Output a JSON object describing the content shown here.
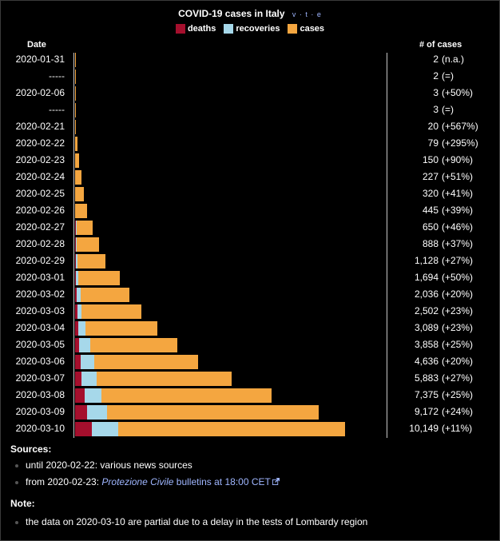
{
  "title": "COVID-19 cases in Italy",
  "vte": "v · t · e",
  "legend": [
    {
      "label": "deaths",
      "color": "#a50f2d"
    },
    {
      "label": "recoveries",
      "color": "#a6d8ea"
    },
    {
      "label": "cases",
      "color": "#f4a640"
    }
  ],
  "headers": {
    "date": "Date",
    "cases": "# of cases"
  },
  "chart_data": {
    "type": "bar",
    "orientation": "horizontal",
    "stacked": true,
    "title": "COVID-19 cases in Italy",
    "series_names": [
      "deaths",
      "recoveries",
      "cases"
    ],
    "rows": [
      {
        "date": "2020-01-31",
        "deaths": 0,
        "recoveries": 0,
        "cases": 2,
        "cases_label": "2",
        "change": "(n.a.)"
      },
      {
        "date": "-----",
        "deaths": 0,
        "recoveries": 0,
        "cases": 2,
        "cases_label": "2",
        "change": "(=)"
      },
      {
        "date": "2020-02-06",
        "deaths": 0,
        "recoveries": 0,
        "cases": 3,
        "cases_label": "3",
        "change": "(+50%)"
      },
      {
        "date": "-----",
        "deaths": 0,
        "recoveries": 0,
        "cases": 3,
        "cases_label": "3",
        "change": "(=)"
      },
      {
        "date": "2020-02-21",
        "deaths": 1,
        "recoveries": 0,
        "cases": 20,
        "cases_label": "20",
        "change": "(+567%)"
      },
      {
        "date": "2020-02-22",
        "deaths": 2,
        "recoveries": 0,
        "cases": 79,
        "cases_label": "79",
        "change": "(+295%)"
      },
      {
        "date": "2020-02-23",
        "deaths": 3,
        "recoveries": 0,
        "cases": 150,
        "cases_label": "150",
        "change": "(+90%)"
      },
      {
        "date": "2020-02-24",
        "deaths": 7,
        "recoveries": 1,
        "cases": 227,
        "cases_label": "227",
        "change": "(+51%)"
      },
      {
        "date": "2020-02-25",
        "deaths": 10,
        "recoveries": 1,
        "cases": 320,
        "cases_label": "320",
        "change": "(+41%)"
      },
      {
        "date": "2020-02-26",
        "deaths": 12,
        "recoveries": 3,
        "cases": 445,
        "cases_label": "445",
        "change": "(+39%)"
      },
      {
        "date": "2020-02-27",
        "deaths": 17,
        "recoveries": 45,
        "cases": 650,
        "cases_label": "650",
        "change": "(+46%)"
      },
      {
        "date": "2020-02-28",
        "deaths": 21,
        "recoveries": 46,
        "cases": 888,
        "cases_label": "888",
        "change": "(+37%)"
      },
      {
        "date": "2020-02-29",
        "deaths": 29,
        "recoveries": 50,
        "cases": 1128,
        "cases_label": "1,128",
        "change": "(+27%)"
      },
      {
        "date": "2020-03-01",
        "deaths": 34,
        "recoveries": 83,
        "cases": 1694,
        "cases_label": "1,694",
        "change": "(+50%)"
      },
      {
        "date": "2020-03-02",
        "deaths": 52,
        "recoveries": 149,
        "cases": 2036,
        "cases_label": "2,036",
        "change": "(+20%)"
      },
      {
        "date": "2020-03-03",
        "deaths": 79,
        "recoveries": 160,
        "cases": 2502,
        "cases_label": "2,502",
        "change": "(+23%)"
      },
      {
        "date": "2020-03-04",
        "deaths": 107,
        "recoveries": 276,
        "cases": 3089,
        "cases_label": "3,089",
        "change": "(+23%)"
      },
      {
        "date": "2020-03-05",
        "deaths": 148,
        "recoveries": 414,
        "cases": 3858,
        "cases_label": "3,858",
        "change": "(+25%)"
      },
      {
        "date": "2020-03-06",
        "deaths": 197,
        "recoveries": 523,
        "cases": 4636,
        "cases_label": "4,636",
        "change": "(+20%)"
      },
      {
        "date": "2020-03-07",
        "deaths": 233,
        "recoveries": 589,
        "cases": 5883,
        "cases_label": "5,883",
        "change": "(+27%)"
      },
      {
        "date": "2020-03-08",
        "deaths": 366,
        "recoveries": 622,
        "cases": 7375,
        "cases_label": "7,375",
        "change": "(+25%)"
      },
      {
        "date": "2020-03-09",
        "deaths": 463,
        "recoveries": 724,
        "cases": 9172,
        "cases_label": "9,172",
        "change": "(+24%)"
      },
      {
        "date": "2020-03-10",
        "deaths": 631,
        "recoveries": 1004,
        "cases": 10149,
        "cases_label": "10,149",
        "change": "(+11%)"
      }
    ]
  },
  "sources": {
    "heading": "Sources:",
    "item1": "until 2020-02-22: various news sources",
    "item2_prefix": "from 2020-02-23: ",
    "item2_link": "Protezione Civile",
    "item2_suffix": " bulletins at 18:00 CET"
  },
  "note": {
    "heading": "Note:",
    "item1": "the data on 2020-03-10 are partial due to a delay in the tests of Lombardy region"
  }
}
